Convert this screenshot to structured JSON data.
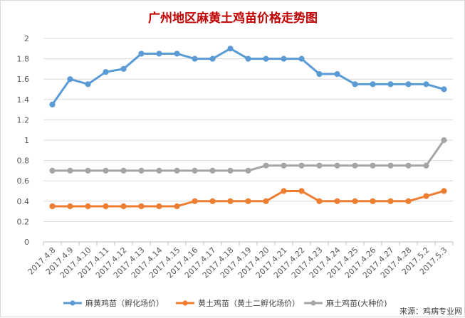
{
  "chart_data": {
    "type": "line",
    "title": "广州地区麻黄土鸡苗价格走势图",
    "title_color": "#c00000",
    "categories": [
      "2017.4.8",
      "2017.4.9",
      "2017.4.10",
      "2017.4.11",
      "2017.4.12",
      "2017.4.13",
      "2017.4.14",
      "2017.4.15",
      "2017.4.16",
      "2017.4.17",
      "2017.4.18",
      "2017.4.19",
      "2017.4.20",
      "2017.4.21",
      "2017.4.22",
      "2017.4.23",
      "2017.4.24",
      "2017.4.25",
      "2017.4.26",
      "2017.4.27",
      "2017.4.28",
      "2017.5.2",
      "2017.5.3"
    ],
    "yticks": [
      "0",
      "0.2",
      "0.4",
      "0.6",
      "0.8",
      "1",
      "1.2",
      "1.4",
      "1.6",
      "1.8",
      "2"
    ],
    "ylim": [
      0,
      2
    ],
    "grid": true,
    "legend_position": "bottom",
    "series": [
      {
        "name": "麻黄鸡苗（孵化场价）",
        "color": "#5b9bd5",
        "values": [
          1.35,
          1.6,
          1.55,
          1.67,
          1.7,
          1.85,
          1.85,
          1.85,
          1.8,
          1.8,
          1.9,
          1.8,
          1.8,
          1.8,
          1.8,
          1.65,
          1.65,
          1.55,
          1.55,
          1.55,
          1.55,
          1.55,
          1.5
        ]
      },
      {
        "name": "黄土鸡苗（黄土二孵化场价）",
        "color": "#ed7d31",
        "values": [
          0.35,
          0.35,
          0.35,
          0.35,
          0.35,
          0.35,
          0.35,
          0.35,
          0.4,
          0.4,
          0.4,
          0.4,
          0.4,
          0.5,
          0.5,
          0.4,
          0.4,
          0.4,
          0.4,
          0.4,
          0.4,
          0.45,
          0.5
        ]
      },
      {
        "name": "麻土鸡苗(大种价)",
        "color": "#a5a5a5",
        "values": [
          0.7,
          0.7,
          0.7,
          0.7,
          0.7,
          0.7,
          0.7,
          0.7,
          0.7,
          0.7,
          0.7,
          0.7,
          0.75,
          0.75,
          0.75,
          0.75,
          0.75,
          0.75,
          0.75,
          0.75,
          0.75,
          0.75,
          1.0
        ]
      }
    ],
    "source_note": "来源：鸡病专业网"
  }
}
